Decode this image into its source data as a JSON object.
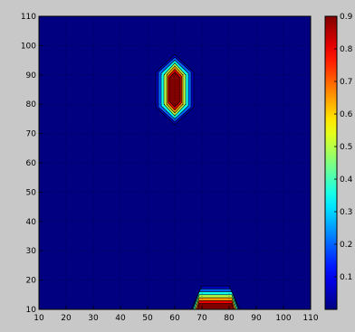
{
  "chart_data": {
    "type": "filled-contour",
    "xlabel": "",
    "ylabel": "",
    "xlim": [
      10,
      110
    ],
    "ylim": [
      10,
      110
    ],
    "x_ticks": [
      10,
      20,
      30,
      40,
      50,
      60,
      70,
      80,
      90,
      100,
      110
    ],
    "y_ticks": [
      10,
      20,
      30,
      40,
      50,
      60,
      70,
      80,
      90,
      100,
      110
    ],
    "grid": true,
    "colormap": "jet",
    "colorbar": {
      "position": "right",
      "range": [
        0,
        0.9
      ],
      "tick_labels": [
        "0.9",
        "0.8",
        "0.7",
        "0.6",
        "0.5",
        "0.4",
        "0.3",
        "0.2",
        "0.1"
      ],
      "tick_values": [
        0.9,
        0.8,
        0.7,
        0.6,
        0.5,
        0.4,
        0.3,
        0.2,
        0.1
      ]
    },
    "peaks": [
      {
        "center_x": 60,
        "center_y": 85,
        "max_value": 0.9,
        "contours": [
          {
            "level": 0.05,
            "half_width": 7,
            "y_top": 97,
            "y_bottom": 73,
            "y_shoulder_top": 91,
            "y_shoulder_bottom": 79
          },
          {
            "level": 0.2,
            "half_width": 6,
            "y_top": 96,
            "y_bottom": 74,
            "y_shoulder_top": 91,
            "y_shoulder_bottom": 79
          },
          {
            "level": 0.35,
            "half_width": 5,
            "y_top": 95,
            "y_bottom": 75,
            "y_shoulder_top": 90.5,
            "y_shoulder_bottom": 79.5
          },
          {
            "level": 0.5,
            "half_width": 4,
            "y_top": 94,
            "y_bottom": 76,
            "y_shoulder_top": 90,
            "y_shoulder_bottom": 80
          },
          {
            "level": 0.65,
            "half_width": 3,
            "y_top": 93,
            "y_bottom": 77,
            "y_shoulder_top": 90,
            "y_shoulder_bottom": 80
          },
          {
            "level": 0.8,
            "half_width": 2.5,
            "y_top": 92,
            "y_bottom": 78,
            "y_shoulder_top": 89.5,
            "y_shoulder_bottom": 80.5
          },
          {
            "level": 0.9,
            "half_width": 2,
            "y_top": 91,
            "y_bottom": 79,
            "y_shoulder_top": 89,
            "y_shoulder_bottom": 81
          }
        ]
      },
      {
        "center_x": 75,
        "center_y": 10,
        "max_value": 0.9,
        "contours": [
          {
            "level": 0.05,
            "half_top": 5,
            "half_bottom": 10,
            "y_top": 18
          },
          {
            "level": 0.2,
            "half_top": 5.5,
            "half_bottom": 9.5,
            "y_top": 17
          },
          {
            "level": 0.35,
            "half_top": 6,
            "half_bottom": 9,
            "y_top": 16
          },
          {
            "level": 0.5,
            "half_top": 6,
            "half_bottom": 8.5,
            "y_top": 15
          },
          {
            "level": 0.65,
            "half_top": 6,
            "half_bottom": 8,
            "y_top": 14
          },
          {
            "level": 0.8,
            "half_top": 6,
            "half_bottom": 7.5,
            "y_top": 13
          },
          {
            "level": 0.9,
            "half_top": 6,
            "half_bottom": 7,
            "y_top": 12
          }
        ]
      }
    ]
  }
}
